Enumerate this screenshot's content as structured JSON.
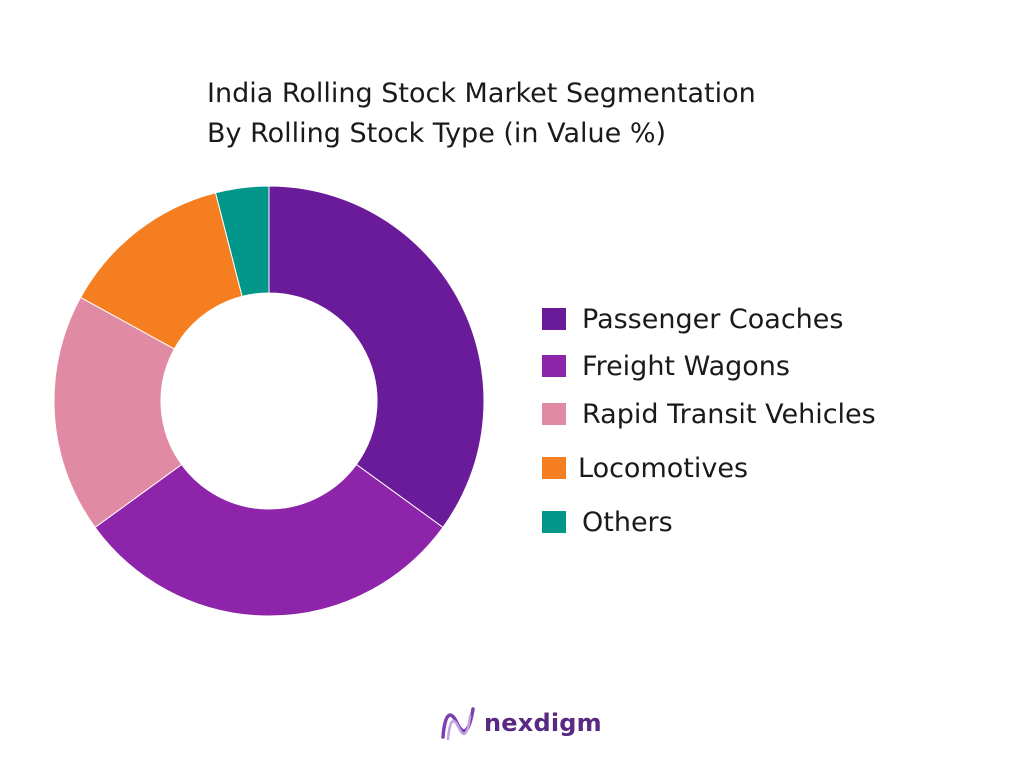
{
  "title_line1": "India Rolling Stock Market Segmentation",
  "title_line2": "By Rolling Stock Type (in Value %)",
  "chart_data": {
    "type": "pie",
    "donut": true,
    "title": "India Rolling Stock Market Segmentation By Rolling Stock Type (in Value %)",
    "unit": "%",
    "categories": [
      "Passenger Coaches",
      "Freight Wagons",
      "Rapid Transit Vehicles",
      "Locomotives",
      "Others"
    ],
    "values": [
      35,
      30,
      18,
      13,
      4
    ],
    "colors": [
      "#6a1b9a",
      "#8e24aa",
      "#e08aa4",
      "#f57f20",
      "#00968a"
    ],
    "legend_position": "right"
  },
  "legend": [
    {
      "label": " Passenger Coaches",
      "color": "#6a1b9a"
    },
    {
      "label": "Freight Wagons",
      "color": "#8e24aa"
    },
    {
      "label": "Rapid Transit Vehicles",
      "color": "#e08aa4"
    },
    {
      "label": "Locomotives",
      "color": "#f57f20"
    },
    {
      "label": "Others",
      "color": "#00968a"
    }
  ],
  "logo": {
    "text": "nexdigm",
    "icon": "nexdigm-wave-logo-icon"
  }
}
